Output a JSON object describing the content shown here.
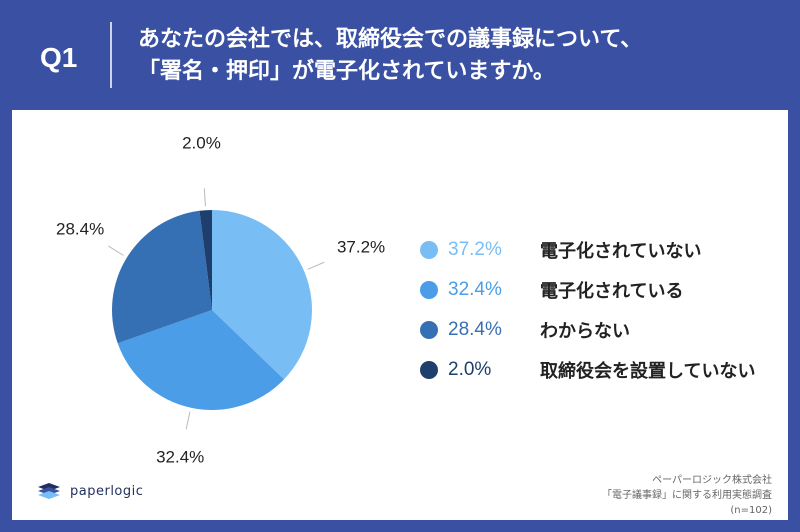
{
  "question": {
    "label": "Q1",
    "title_line1": "あなたの会社では、取締役会での議事録について、",
    "title_line2": "「署名・押印」が電子化されていますか。"
  },
  "chart_data": {
    "type": "pie",
    "slices": [
      {
        "label": "電子化されていない",
        "value": 37.2,
        "value_label": "37.2%",
        "color": "#79bdf5"
      },
      {
        "label": "電子化されている",
        "value": 32.4,
        "value_label": "32.4%",
        "color": "#4a9de6"
      },
      {
        "label": "わからない",
        "value": 28.4,
        "value_label": "28.4%",
        "color": "#3670b4"
      },
      {
        "label": "取締役会を設置していない",
        "value": 2.0,
        "value_label": "2.0%",
        "color": "#1e3f6e"
      }
    ],
    "legend_position": "right",
    "start_angle_deg": 0,
    "direction": "clockwise"
  },
  "footer": {
    "logo_text": "paperlogic",
    "source_company": "ペーパーロジック株式会社",
    "source_survey": "「電子議事録」に関する利用実態調査",
    "sample_size": "(n=102)"
  },
  "colors": {
    "background": "#3a51a3",
    "card": "#ffffff"
  }
}
